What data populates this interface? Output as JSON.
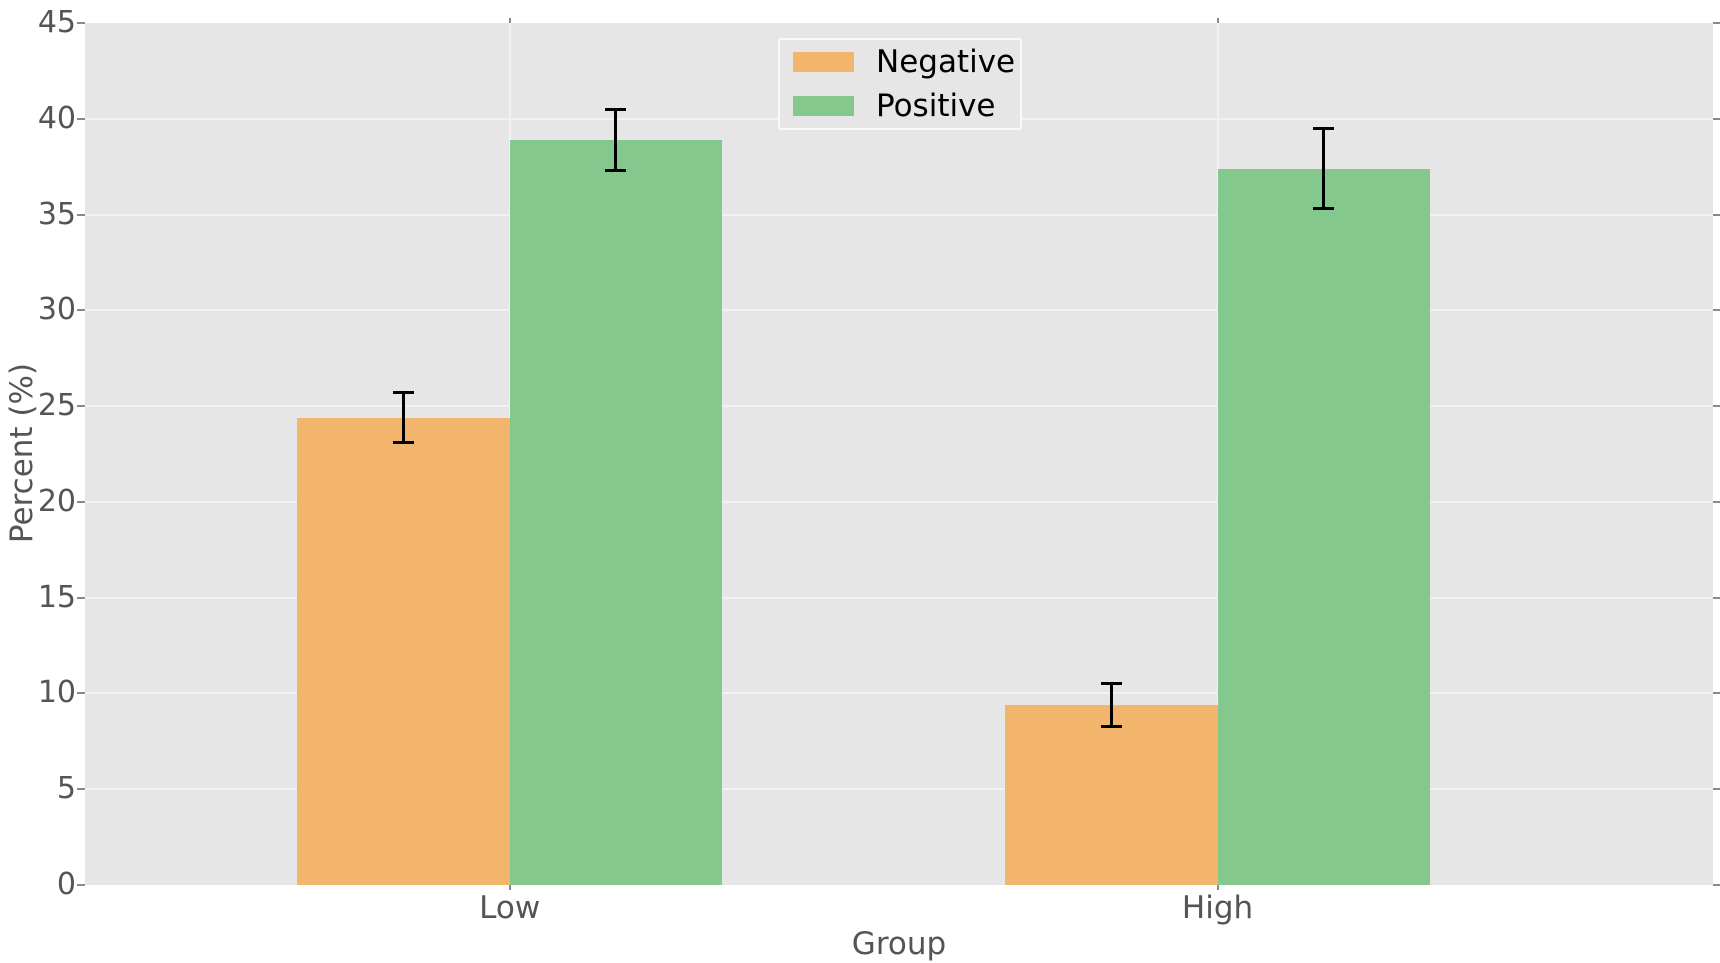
{
  "chart_data": {
    "type": "bar",
    "title": "",
    "xlabel": "Group",
    "ylabel": "Percent (%)",
    "categories": [
      "Low",
      "High"
    ],
    "series": [
      {
        "name": "Negative",
        "color": "#F3B46B",
        "values": [
          24.4,
          9.4
        ],
        "errors": [
          1.3,
          1.1
        ]
      },
      {
        "name": "Positive",
        "color": "#85C88D",
        "values": [
          38.9,
          37.4
        ],
        "errors": [
          1.6,
          2.1
        ]
      }
    ],
    "ylim": [
      0,
      45
    ],
    "yticks": [
      0,
      5,
      10,
      15,
      20,
      25,
      30,
      35,
      40,
      45
    ],
    "xlim": [
      -0.6,
      1.7
    ],
    "bar_width": 0.3,
    "grid": true,
    "legend": {
      "position": "upper-center"
    },
    "style": {
      "figure_bg": "#FFFFFF",
      "plot_bg": "#E6E6E6",
      "grid_color": "#F2F2F2",
      "tick_color": "#8A8A8A",
      "tick_label_color": "#555555",
      "axis_label_color": "#555555",
      "legend_text_color": "#000000",
      "error_color": "#000000"
    }
  }
}
